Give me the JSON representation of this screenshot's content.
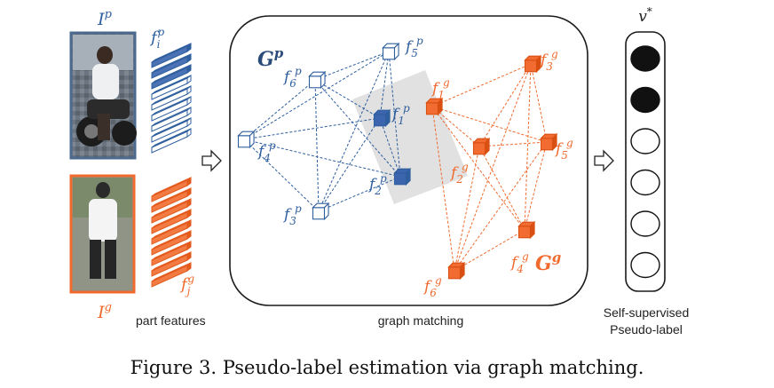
{
  "colors": {
    "probe_blue": "#2f5f9e",
    "gallery_orange": "#f06a2e",
    "dark_text": "#222222",
    "matching_region": "#d9d9d9"
  },
  "probe": {
    "image_label_base": "I",
    "image_label_sup": "p",
    "feature_label_base": "f",
    "feature_label_sub": "i",
    "feature_label_sup": "p"
  },
  "gallery": {
    "image_label_base": "I",
    "image_label_sup": "g",
    "feature_label_base": "f",
    "feature_label_sub": "j",
    "feature_label_sup": "g"
  },
  "part_features_caption": "part features",
  "graph_matching_caption": "graph matching",
  "probe_graph": {
    "name_base": "G",
    "name_sup": "p",
    "nodes": [
      {
        "base": "f",
        "sub": "1",
        "sup": "p",
        "filled": true
      },
      {
        "base": "f",
        "sub": "2",
        "sup": "p",
        "filled": true
      },
      {
        "base": "f",
        "sub": "3",
        "sup": "p",
        "filled": false
      },
      {
        "base": "f",
        "sub": "4",
        "sup": "p",
        "filled": false
      },
      {
        "base": "f",
        "sub": "5",
        "sup": "p",
        "filled": false
      },
      {
        "base": "f",
        "sub": "6",
        "sup": "p",
        "filled": false
      }
    ]
  },
  "gallery_graph": {
    "name_base": "G",
    "name_sup": "g",
    "nodes": [
      {
        "base": "f",
        "sub": "1",
        "sup": "g"
      },
      {
        "base": "f",
        "sub": "2",
        "sup": "g"
      },
      {
        "base": "f",
        "sub": "3",
        "sup": "g"
      },
      {
        "base": "f",
        "sub": "4",
        "sup": "g"
      },
      {
        "base": "f",
        "sub": "5",
        "sup": "g"
      },
      {
        "base": "f",
        "sub": "6",
        "sup": "g"
      }
    ]
  },
  "label_vector": {
    "name": "v",
    "name_sup": "*",
    "values": [
      1,
      1,
      0,
      0,
      0,
      0
    ]
  },
  "label_caption_line1": "Self-supervised",
  "label_caption_line2": "Pseudo-label",
  "figure_caption": "Figure 3. Pseudo-label estimation via graph matching."
}
